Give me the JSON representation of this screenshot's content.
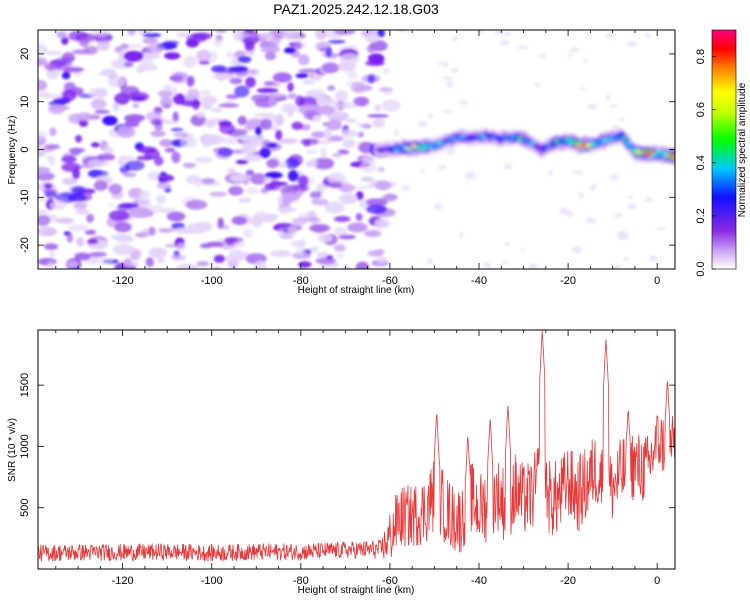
{
  "title": "PAZ1.2025.242.12.18.G03",
  "colors": {
    "snr_line": "#e8393a",
    "spectrogram_palette": [
      "#ffffff",
      "#e4d4fb",
      "#c9a3f5",
      "#a266ee",
      "#7a1ff0",
      "#3b10ff",
      "#0080ff",
      "#00e6e6",
      "#00e000",
      "#f0f000",
      "#ff8000",
      "#ff0000",
      "#ff0080"
    ]
  },
  "chart_data": [
    {
      "type": "heatmap",
      "title": "PAZ1.2025.242.12.18.G03",
      "xlabel": "Height of straight line (km)",
      "ylabel": "Frequency (Hz)",
      "xlim": [
        -139,
        4
      ],
      "ylim": [
        -25,
        25
      ],
      "xticks": [
        -120,
        -100,
        -80,
        -60,
        -40,
        -20,
        0
      ],
      "yticks": [
        -20,
        -10,
        0,
        10,
        20
      ],
      "noise_region_x": [
        -139,
        -61
      ],
      "signal_track": {
        "x": [
          -63,
          -58,
          -55,
          -50,
          -47,
          -45,
          -42,
          -38,
          -35,
          -32,
          -29,
          -26,
          -23,
          -20,
          -17,
          -14,
          -11,
          -8,
          -5,
          -2,
          1,
          4
        ],
        "freq": [
          -0.2,
          0.2,
          0.5,
          0.8,
          1.8,
          2.6,
          2.4,
          2.8,
          2.2,
          2.6,
          1.8,
          0.0,
          1.4,
          1.8,
          0.8,
          1.2,
          2.2,
          3.0,
          -0.6,
          -0.8,
          -1.0,
          -1.6
        ],
        "amplitude": [
          0.25,
          0.55,
          0.7,
          0.55,
          0.45,
          0.5,
          0.45,
          0.5,
          0.45,
          0.55,
          0.5,
          0.4,
          0.55,
          0.6,
          0.9,
          0.6,
          0.5,
          0.55,
          0.6,
          0.9,
          0.6,
          0.9
        ]
      },
      "colorbar": {
        "label": "Normalized spectral amplitude",
        "range": [
          0.0,
          0.9
        ],
        "ticks": [
          0.0,
          0.2,
          0.4,
          0.6,
          0.8
        ]
      }
    },
    {
      "type": "line",
      "xlabel": "Height of straight line (km)",
      "ylabel": "SNR (10 * v/v)",
      "xlim": [
        -139,
        4
      ],
      "ylim": [
        0,
        1950
      ],
      "xticks": [
        -120,
        -100,
        -80,
        -60,
        -40,
        -20,
        0
      ],
      "yticks": [
        500,
        1000,
        1500
      ],
      "series": [
        {
          "name": "SNR",
          "x": [
            -139,
            -130,
            -120,
            -110,
            -100,
            -90,
            -80,
            -70,
            -62,
            -60,
            -58,
            -55,
            -52,
            -50,
            -48,
            -46,
            -44,
            -42,
            -40,
            -38,
            -36,
            -34,
            -32,
            -30,
            -28,
            -26,
            -24,
            -22,
            -20,
            -18,
            -16,
            -14,
            -12,
            -10,
            -8,
            -6,
            -4,
            -2,
            0,
            2,
            4
          ],
          "mean": [
            130,
            135,
            135,
            140,
            130,
            140,
            140,
            155,
            160,
            260,
            420,
            430,
            480,
            620,
            520,
            420,
            400,
            600,
            480,
            540,
            620,
            520,
            640,
            560,
            600,
            820,
            560,
            580,
            720,
            600,
            680,
            820,
            720,
            660,
            780,
            860,
            820,
            820,
            1050,
            1000,
            1050
          ],
          "noise": [
            70,
            70,
            70,
            70,
            70,
            70,
            70,
            70,
            80,
            220,
            260,
            260,
            280,
            320,
            300,
            280,
            280,
            300,
            300,
            320,
            300,
            320,
            320,
            300,
            300,
            300,
            320,
            320,
            300,
            320,
            320,
            300,
            300,
            300,
            300,
            300,
            300,
            280,
            260,
            260,
            200
          ],
          "peaks": [
            {
              "x": -49.5,
              "y": 1290
            },
            {
              "x": -42.5,
              "y": 1100
            },
            {
              "x": -37.5,
              "y": 1240
            },
            {
              "x": -33.5,
              "y": 1340
            },
            {
              "x": -25.8,
              "y": 1950
            },
            {
              "x": -11.5,
              "y": 1880
            },
            {
              "x": -6.5,
              "y": 1320
            },
            {
              "x": 2.3,
              "y": 1560
            }
          ]
        }
      ]
    }
  ]
}
